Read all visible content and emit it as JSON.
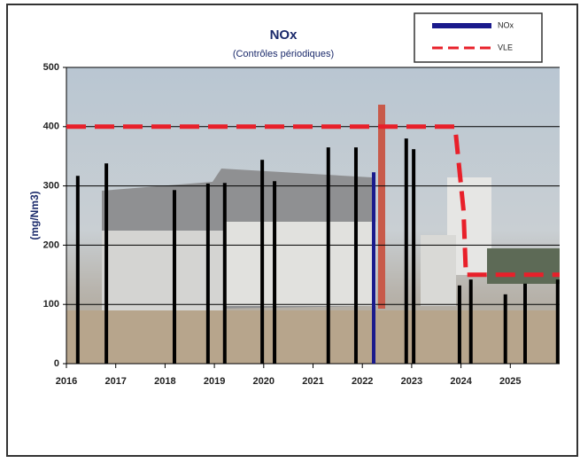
{
  "chart_data": {
    "type": "bar",
    "title": "NOx",
    "subtitle": "(Contrôles périodiques)",
    "y_label": "(mg/Nm3)",
    "xlim": [
      2016,
      2026
    ],
    "xticks": [
      2016,
      2017,
      2018,
      2019,
      2020,
      2021,
      2022,
      2023,
      2024,
      2025
    ],
    "ylim": [
      0,
      500
    ],
    "yticks": [
      0,
      100,
      200,
      300,
      400,
      500
    ],
    "grid": true,
    "legend": "top-right",
    "series": [
      {
        "name": "NOx",
        "color": "#1a1a8c",
        "x": [
          2016.23,
          2016.81,
          2018.19,
          2018.87,
          2019.21,
          2019.97,
          2020.22,
          2021.31,
          2021.87,
          2022.23,
          2022.89,
          2023.04,
          2023.97,
          2024.2,
          2024.9,
          2025.3,
          2025.96
        ],
        "values": [
          317,
          338,
          293,
          304,
          305,
          344,
          308,
          365,
          365,
          323,
          380,
          362,
          132,
          142,
          117,
          135,
          142
        ],
        "colors": [
          "#000000",
          "#000000",
          "#000000",
          "#000000",
          "#000000",
          "#000000",
          "#000000",
          "#000000",
          "#000000",
          "#1a1a8c",
          "#000000",
          "#000000",
          "#000000",
          "#000000",
          "#000000",
          "#000000",
          "#000000"
        ]
      },
      {
        "name": "VLE",
        "color": "#e8202a",
        "type": "line",
        "x": [
          2016,
          2023.88,
          2024.05,
          2024.1,
          2026
        ],
        "values": [
          400,
          400,
          260,
          150,
          150
        ]
      }
    ]
  }
}
